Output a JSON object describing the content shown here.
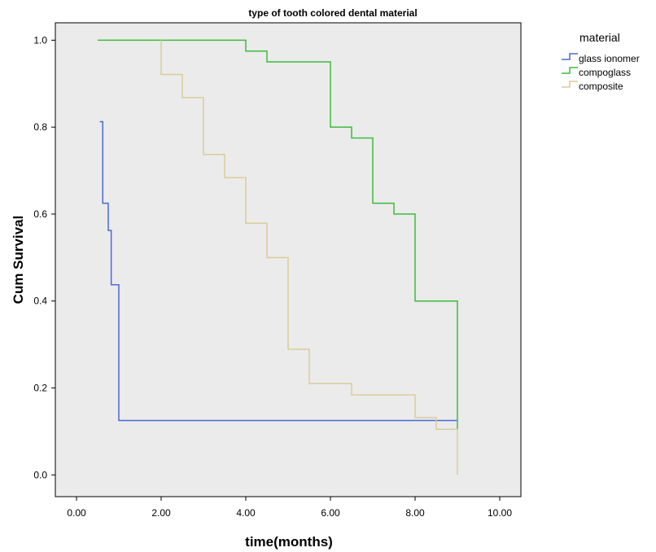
{
  "chart_data": {
    "type": "line",
    "step": true,
    "title": "type of tooth colored dental material",
    "xlabel": "time(months)",
    "ylabel": "Cum Survival",
    "xlim": [
      -0.5,
      10.5
    ],
    "ylim": [
      -0.05,
      1.04
    ],
    "x_ticks": [
      0,
      2,
      4,
      6,
      8,
      10
    ],
    "x_tick_labels": [
      "0.00",
      "2.00",
      "4.00",
      "6.00",
      "8.00",
      "10.00"
    ],
    "y_ticks": [
      0,
      0.2,
      0.4,
      0.6,
      0.8,
      1.0
    ],
    "y_tick_labels": [
      "0.0",
      "0.2",
      "0.4",
      "0.6",
      "0.8",
      "1.0"
    ],
    "grid": false,
    "plot_background": "#ebebeb",
    "legend": {
      "title": "material",
      "position": "right"
    },
    "series": [
      {
        "name": "glass ionomer",
        "color": "#4a6bd1",
        "points": [
          [
            0.55,
            0.8125
          ],
          [
            0.62,
            0.625
          ],
          [
            0.75,
            0.5625
          ],
          [
            0.82,
            0.4375
          ],
          [
            1.0,
            0.125
          ],
          [
            9.0,
            0.125
          ]
        ]
      },
      {
        "name": "compoglass",
        "color": "#3dbb3d",
        "points": [
          [
            0.5,
            1.0
          ],
          [
            4.0,
            0.975
          ],
          [
            4.5,
            0.95
          ],
          [
            6.0,
            0.8
          ],
          [
            6.5,
            0.775
          ],
          [
            7.0,
            0.625
          ],
          [
            7.5,
            0.6
          ],
          [
            8.0,
            0.4
          ],
          [
            9.0,
            0.105
          ]
        ]
      },
      {
        "name": "composite",
        "color": "#d9cc99",
        "points": [
          [
            2.0,
            1.0
          ],
          [
            2.0,
            0.921
          ],
          [
            2.5,
            0.868
          ],
          [
            3.0,
            0.737
          ],
          [
            3.5,
            0.684
          ],
          [
            4.0,
            0.579
          ],
          [
            4.5,
            0.5
          ],
          [
            5.0,
            0.289
          ],
          [
            5.5,
            0.21
          ],
          [
            6.5,
            0.184
          ],
          [
            8.0,
            0.132
          ],
          [
            8.5,
            0.105
          ],
          [
            9.0,
            0.0
          ]
        ]
      }
    ]
  }
}
